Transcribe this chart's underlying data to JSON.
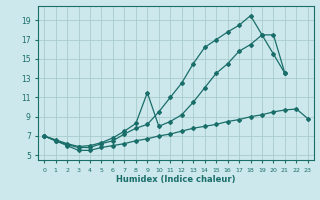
{
  "xlabel": "Humidex (Indice chaleur)",
  "bg_color": "#cce8ec",
  "grid_color": "#aacccc",
  "line_color": "#1a6e6a",
  "line1_y": [
    7.0,
    6.5,
    6.1,
    5.8,
    5.8,
    6.2,
    6.5,
    7.2,
    7.8,
    8.2,
    9.5,
    11.0,
    12.5,
    14.5,
    16.2,
    17.0,
    17.8,
    18.5,
    19.5,
    17.5,
    17.5,
    13.5,
    null,
    null
  ],
  "line2_y": [
    7.0,
    6.6,
    6.2,
    5.9,
    6.0,
    6.3,
    6.8,
    7.5,
    8.3,
    11.5,
    8.0,
    8.5,
    9.2,
    10.5,
    12.0,
    13.5,
    14.5,
    15.8,
    16.5,
    17.5,
    15.5,
    13.5,
    null,
    null
  ],
  "line3_y": [
    7.0,
    6.5,
    6.0,
    5.5,
    5.5,
    5.8,
    6.0,
    6.2,
    6.5,
    6.7,
    7.0,
    7.2,
    7.5,
    7.8,
    8.0,
    8.2,
    8.5,
    8.7,
    9.0,
    9.2,
    9.5,
    9.7,
    9.8,
    8.8
  ],
  "xlim": [
    -0.5,
    23.5
  ],
  "ylim": [
    4.5,
    20.5
  ],
  "yticks": [
    5,
    7,
    9,
    11,
    13,
    15,
    17,
    19
  ],
  "xticks": [
    0,
    1,
    2,
    3,
    4,
    5,
    6,
    7,
    8,
    9,
    10,
    11,
    12,
    13,
    14,
    15,
    16,
    17,
    18,
    19,
    20,
    21,
    22,
    23
  ]
}
